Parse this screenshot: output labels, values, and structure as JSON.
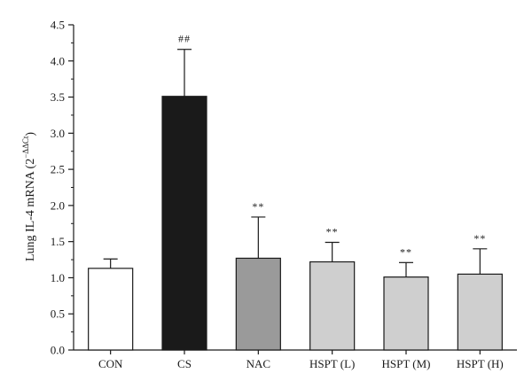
{
  "chart_data": {
    "type": "bar",
    "categories": [
      "CON",
      "CS",
      "NAC",
      "HSPT (L)",
      "HSPT (M)",
      "HSPT (H)"
    ],
    "values": [
      1.13,
      3.51,
      1.27,
      1.22,
      1.01,
      1.05
    ],
    "error_upper": [
      1.26,
      4.16,
      1.84,
      1.49,
      1.21,
      1.4
    ],
    "annotations": [
      "",
      "##",
      "**",
      "**",
      "**",
      "**"
    ],
    "bar_colors": [
      "#ffffff",
      "#1a1a1a",
      "#9a9a9a",
      "#cfcfcf",
      "#cfcfcf",
      "#cfcfcf"
    ],
    "ylabel_main": "Lung IL-4 mRNA (2",
    "ylabel_sup": "−ΔΔCt",
    "ylabel_end": ")",
    "ylim": [
      0,
      4.5
    ],
    "yticks": [
      "0.0",
      "0.5",
      "1.0",
      "1.5",
      "2.0",
      "2.5",
      "3.0",
      "3.5",
      "4.0",
      "4.5"
    ],
    "grid": false
  }
}
